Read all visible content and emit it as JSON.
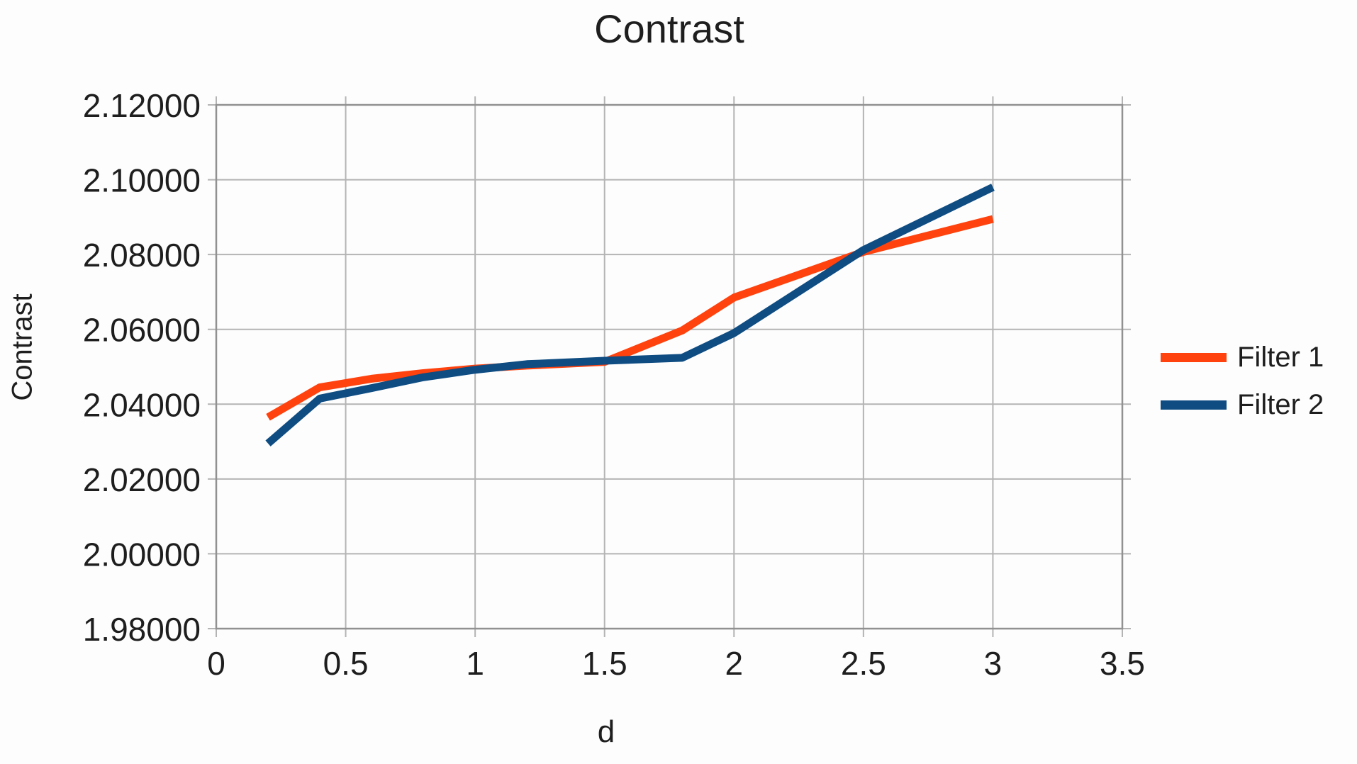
{
  "title": "Contrast",
  "x_axis": {
    "title": "d",
    "tick_values": [
      0,
      0.5,
      1,
      1.5,
      2,
      2.5,
      3,
      3.5
    ],
    "tick_labels": [
      "0",
      "0.5",
      "1",
      "1.5",
      "2",
      "2.5",
      "3",
      "3.5"
    ]
  },
  "y_axis": {
    "title": "Contrast",
    "tick_values": [
      2.12,
      2.1,
      2.08,
      2.06,
      2.04,
      2.02,
      2.0,
      1.98
    ],
    "tick_labels": [
      "2.12000",
      "2.10000",
      "2.08000",
      "2.06000",
      "2.04000",
      "2.02000",
      "2.00000",
      "1.98000"
    ]
  },
  "legend": {
    "items": [
      {
        "label": "Filter 1",
        "color": "#ff420e"
      },
      {
        "label": "Filter 2",
        "color": "#0e4c82"
      }
    ]
  },
  "colors": {
    "grid": "#b4b4b4",
    "border": "#919191",
    "text": "#1e1e1e",
    "background": "#fdfdfd",
    "series1": "#ff420e",
    "series2": "#0e4c82"
  },
  "chart_data": {
    "type": "line",
    "title": "Contrast",
    "xlabel": "d",
    "ylabel": "Contrast",
    "xlim": [
      0,
      3.5
    ],
    "ylim": [
      1.98,
      2.12
    ],
    "grid": true,
    "legend_position": "right",
    "x": [
      0.2,
      0.4,
      0.6,
      0.8,
      1.0,
      1.2,
      1.5,
      1.8,
      2.0,
      2.5,
      3.0
    ],
    "series": [
      {
        "name": "Filter 1",
        "color": "#ff420e",
        "values": [
          2.0365,
          2.0445,
          2.0468,
          2.0483,
          2.0495,
          2.0503,
          2.0513,
          2.0597,
          2.0685,
          2.0807,
          2.0895
        ]
      },
      {
        "name": "Filter 2",
        "color": "#0e4c82",
        "values": [
          2.0295,
          2.0415,
          2.0443,
          2.0472,
          2.0492,
          2.0507,
          2.0516,
          2.0524,
          2.059,
          2.0812,
          2.098
        ]
      }
    ]
  }
}
